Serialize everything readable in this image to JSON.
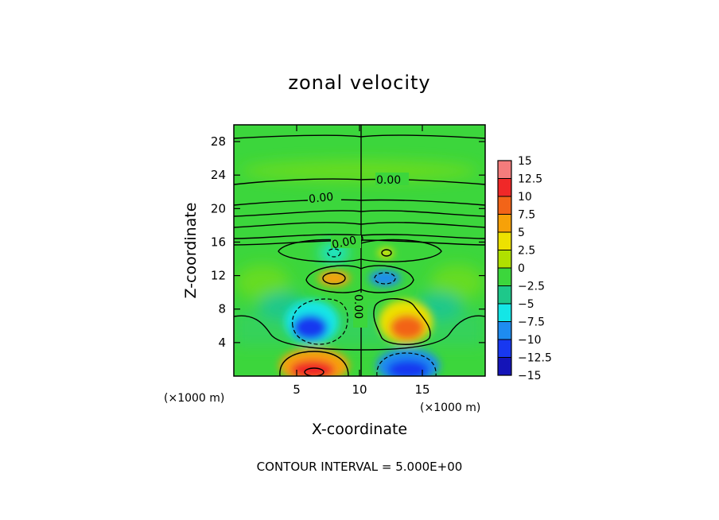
{
  "chart_data": {
    "type": "heatmap",
    "title": "zonal velocity",
    "xlabel": "X-coordinate",
    "ylabel": "Z-coordinate",
    "x_unit_label": "(×1000 m)",
    "xlim": [
      0,
      20
    ],
    "ylim": [
      0,
      30
    ],
    "x_ticks": [
      "5",
      "10",
      "15"
    ],
    "x_tick_values": [
      5,
      10,
      15
    ],
    "y_ticks": [
      "4",
      "8",
      "12",
      "16",
      "20",
      "24",
      "28"
    ],
    "y_tick_values": [
      4,
      8,
      12,
      16,
      20,
      24,
      28
    ],
    "colorbar": {
      "labels": [
        "15",
        "12.5",
        "10",
        "7.5",
        "5",
        "2.5",
        "0",
        "−2.5",
        "−5",
        "−7.5",
        "−10",
        "−12.5",
        "−15"
      ],
      "levels": [
        15,
        12.5,
        10,
        7.5,
        5,
        2.5,
        0,
        -2.5,
        -5,
        -7.5,
        -10,
        -12.5,
        -15
      ],
      "colors_top_to_bottom": [
        "#f47c7c",
        "#f02828",
        "#f26418",
        "#f7a108",
        "#ede100",
        "#b0e000",
        "#3cd63c",
        "#1ec88a",
        "#14e6e6",
        "#1e8cf0",
        "#1838f0",
        "#1414b8",
        "#6a14aa"
      ],
      "range": [
        -15,
        15
      ]
    },
    "contour_labels": [
      "0.00",
      "0.00",
      "0.00",
      "0.00"
    ],
    "contour_interval_note": "CONTOUR INTERVAL = 5.000E+00",
    "features": [
      {
        "x": 6.5,
        "z": 1.0,
        "value": 11,
        "sign": "positive"
      },
      {
        "x": 13.5,
        "z": 1.0,
        "value": -11,
        "sign": "negative"
      },
      {
        "x": 5.5,
        "z": 5.5,
        "value": -8,
        "sign": "negative"
      },
      {
        "x": 14.5,
        "z": 5.5,
        "value": 7,
        "sign": "positive"
      },
      {
        "x": 8.0,
        "z": 12.0,
        "value": 6,
        "sign": "positive"
      },
      {
        "x": 12.0,
        "z": 12.0,
        "value": -6,
        "sign": "negative"
      }
    ]
  }
}
